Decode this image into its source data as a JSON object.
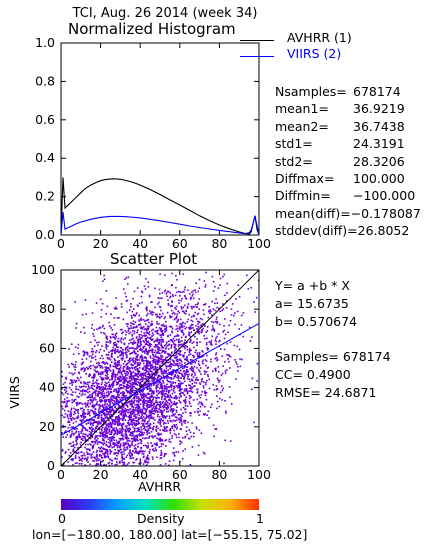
{
  "page_title": "TCI,  Aug. 26 2014 (week 34)",
  "chart_data": [
    {
      "type": "line",
      "title": "Normalized Histogram",
      "xlim": [
        0,
        100
      ],
      "ylim": [
        0,
        1.0
      ],
      "x_ticks": [
        "0",
        "20",
        "40",
        "60",
        "80",
        "100"
      ],
      "y_ticks": [
        "0.0",
        "0.2",
        "0.4",
        "0.6",
        "0.8",
        "1.0"
      ],
      "grid": false,
      "legend_placement": "right",
      "series": [
        {
          "name": "AVHRR (1)",
          "color": "#000000",
          "x": [
            0,
            1,
            2,
            3,
            5,
            8,
            10,
            12,
            15,
            18,
            20,
            22,
            25,
            28,
            30,
            32,
            35,
            38,
            40,
            45,
            50,
            55,
            60,
            65,
            70,
            75,
            80,
            85,
            90,
            93,
            95,
            96,
            97,
            98,
            99,
            100
          ],
          "y": [
            0.0,
            0.3,
            0.14,
            0.15,
            0.17,
            0.2,
            0.22,
            0.24,
            0.26,
            0.275,
            0.283,
            0.288,
            0.292,
            0.292,
            0.29,
            0.286,
            0.278,
            0.268,
            0.26,
            0.237,
            0.211,
            0.183,
            0.156,
            0.128,
            0.1,
            0.075,
            0.052,
            0.033,
            0.016,
            0.008,
            0.005,
            0.015,
            0.06,
            0.1,
            0.03,
            0.0
          ]
        },
        {
          "name": "VIIRS (2)",
          "color": "#0000ff",
          "x": [
            0,
            1,
            2,
            3,
            5,
            8,
            10,
            15,
            20,
            25,
            30,
            35,
            40,
            45,
            50,
            55,
            60,
            65,
            70,
            75,
            80,
            85,
            90,
            93,
            95,
            96,
            97,
            98,
            99,
            100
          ],
          "y": [
            0.0,
            0.12,
            0.03,
            0.035,
            0.045,
            0.06,
            0.067,
            0.082,
            0.092,
            0.097,
            0.097,
            0.094,
            0.089,
            0.082,
            0.074,
            0.065,
            0.056,
            0.047,
            0.039,
            0.031,
            0.024,
            0.017,
            0.011,
            0.007,
            0.012,
            0.025,
            0.06,
            0.1,
            0.05,
            0.0
          ]
        }
      ]
    },
    {
      "type": "scatter",
      "title": "Scatter Plot",
      "xlabel": "AVHRR",
      "ylabel": "VIIRS",
      "xlim": [
        0,
        100
      ],
      "ylim": [
        0,
        100
      ],
      "x_ticks": [
        "0",
        "20",
        "40",
        "60",
        "80",
        "100"
      ],
      "y_ticks": [
        "0",
        "20",
        "40",
        "60",
        "80",
        "100"
      ],
      "grid": false,
      "point_color": "#6a00d8",
      "fit_line": {
        "a": 15.6735,
        "b": 0.570674,
        "color": "#0000ff"
      },
      "one_to_one_line": {
        "color": "#000000"
      },
      "density_colorbar": {
        "label": "Density",
        "min_label": "0",
        "max_label": "1",
        "colors": [
          "#5a00c0",
          "#2a3cff",
          "#00a0ff",
          "#00e0c0",
          "#30e000",
          "#c8e000",
          "#ffb000",
          "#ff3000"
        ]
      }
    }
  ],
  "legend": {
    "items": [
      {
        "label": "AVHRR (1)",
        "color": "#000000"
      },
      {
        "label": "VIIRS (2)",
        "color": "#0000ff"
      }
    ]
  },
  "hist_stats": [
    {
      "label": "Nsamples=",
      "value": "678174"
    },
    {
      "label": "mean1=",
      "value": "36.9219"
    },
    {
      "label": "mean2=",
      "value": "36.7438"
    },
    {
      "label": "std1=",
      "value": "24.3191"
    },
    {
      "label": "std2=",
      "value": "28.3206"
    },
    {
      "label": "Diffmax=",
      "value": "100.000"
    },
    {
      "label": "Diffmin=",
      "value": "−100.000"
    },
    {
      "label": "mean(diff)=",
      "value": "−0.178087"
    },
    {
      "label": "stddev(diff)=",
      "value": "26.8052"
    }
  ],
  "fit_stats": {
    "equation": "Y= a +b * X",
    "a_line": "a= 15.6735",
    "b_line": "b= 0.570674",
    "samples_line": "Samples= 678174",
    "cc_line": "CC=  0.4900",
    "rmse_line": "RMSE= 24.6871"
  },
  "footer": "lon=[−180.00, 180.00] lat=[−55.15, 75.02]"
}
